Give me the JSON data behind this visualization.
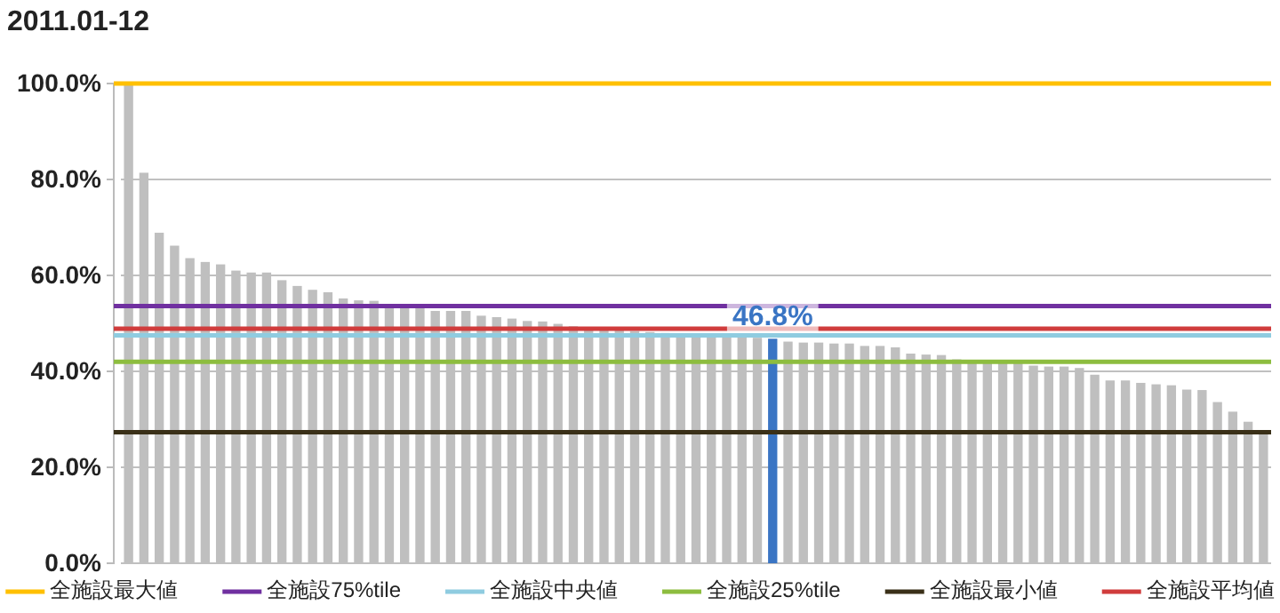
{
  "chart_data": {
    "type": "bar",
    "title": "2011.01-12",
    "categories": [
      null,
      null,
      null,
      null,
      null,
      null,
      null,
      null,
      null,
      null,
      null,
      null,
      null,
      null,
      null,
      null,
      null,
      null,
      null,
      null,
      null,
      null,
      null,
      null,
      null,
      null,
      null,
      null,
      null,
      null,
      null,
      null,
      null,
      null,
      null,
      null,
      null,
      null,
      null,
      null,
      null,
      null,
      null,
      null,
      null,
      null,
      null,
      null,
      null,
      null,
      null,
      null,
      null,
      null,
      null,
      null,
      null,
      null,
      null,
      null,
      null,
      null,
      null,
      null,
      null,
      null,
      null,
      null,
      null,
      null,
      null,
      null,
      null,
      null,
      null
    ],
    "values": [
      100,
      81.4,
      68.9,
      66.2,
      63.6,
      62.8,
      62.3,
      61.0,
      60.6,
      60.6,
      59.0,
      57.8,
      57.0,
      56.5,
      55.2,
      54.8,
      54.7,
      53.9,
      53.5,
      53.2,
      52.6,
      52.6,
      52.6,
      51.6,
      51.3,
      51.0,
      50.5,
      50.4,
      49.9,
      49.4,
      49.0,
      48.8,
      48.6,
      48.4,
      48.2,
      48.0,
      47.8,
      47.5,
      47.5,
      47.3,
      47.1,
      47.0,
      46.8,
      46.2,
      46.0,
      46.0,
      45.8,
      45.8,
      45.3,
      45.3,
      45.0,
      43.7,
      43.5,
      43.4,
      42.5,
      42.0,
      42.0,
      41.9,
      41.8,
      41.2,
      41.0,
      41.0,
      40.7,
      39.3,
      38.1,
      38.1,
      37.6,
      37.3,
      37.1,
      36.2,
      36.1,
      33.6,
      31.6,
      29.5,
      27.3
    ],
    "colors": [
      "#bfbfbf",
      "#bfbfbf",
      "#bfbfbf",
      "#bfbfbf",
      "#bfbfbf",
      "#bfbfbf",
      "#bfbfbf",
      "#bfbfbf",
      "#bfbfbf",
      "#bfbfbf",
      "#bfbfbf",
      "#bfbfbf",
      "#bfbfbf",
      "#bfbfbf",
      "#bfbfbf",
      "#bfbfbf",
      "#bfbfbf",
      "#bfbfbf",
      "#bfbfbf",
      "#bfbfbf",
      "#bfbfbf",
      "#bfbfbf",
      "#bfbfbf",
      "#bfbfbf",
      "#bfbfbf",
      "#bfbfbf",
      "#bfbfbf",
      "#bfbfbf",
      "#bfbfbf",
      "#bfbfbf",
      "#bfbfbf",
      "#bfbfbf",
      "#bfbfbf",
      "#bfbfbf",
      "#bfbfbf",
      "#bfbfbf",
      "#bfbfbf",
      "#bfbfbf",
      "#bfbfbf",
      "#bfbfbf",
      "#bfbfbf",
      "#bfbfbf",
      "#3a75c4",
      "#bfbfbf",
      "#bfbfbf",
      "#bfbfbf",
      "#bfbfbf",
      "#bfbfbf",
      "#bfbfbf",
      "#bfbfbf",
      "#bfbfbf",
      "#bfbfbf",
      "#bfbfbf",
      "#bfbfbf",
      "#bfbfbf",
      "#bfbfbf",
      "#bfbfbf",
      "#bfbfbf",
      "#bfbfbf",
      "#bfbfbf",
      "#bfbfbf",
      "#bfbfbf",
      "#bfbfbf",
      "#bfbfbf",
      "#bfbfbf",
      "#bfbfbf",
      "#bfbfbf",
      "#bfbfbf",
      "#bfbfbf",
      "#bfbfbf",
      "#bfbfbf",
      "#bfbfbf",
      "#bfbfbf",
      "#bfbfbf",
      "#bfbfbf"
    ],
    "value_labels": [
      null,
      null,
      null,
      null,
      null,
      null,
      null,
      null,
      null,
      null,
      null,
      null,
      null,
      null,
      null,
      null,
      null,
      null,
      null,
      null,
      null,
      null,
      null,
      null,
      null,
      null,
      null,
      null,
      null,
      null,
      null,
      null,
      null,
      null,
      null,
      null,
      null,
      null,
      null,
      null,
      null,
      null,
      "46.8%",
      null,
      null,
      null,
      null,
      null,
      null,
      null,
      null,
      null,
      null,
      null,
      null,
      null,
      null,
      null,
      null,
      null,
      null,
      null,
      null,
      null,
      null,
      null,
      null,
      null,
      null,
      null,
      null,
      null,
      null,
      null,
      null
    ],
    "ylim": [
      0,
      100
    ],
    "yticks": [
      {
        "value": 0,
        "label": "0.0%"
      },
      {
        "value": 20,
        "label": "20.0%"
      },
      {
        "value": 40,
        "label": "40.0%"
      },
      {
        "value": 60,
        "label": "60.0%"
      },
      {
        "value": 80,
        "label": "80.0%"
      },
      {
        "value": 100,
        "label": "100.0%"
      }
    ],
    "grid": "y",
    "ref_lines": [
      {
        "axis": "y",
        "value": 100,
        "label": "全施設最大値",
        "color": "#ffc000"
      },
      {
        "axis": "y",
        "value": 53.6,
        "label": "全施設75%tile",
        "color": "#7030a0"
      },
      {
        "axis": "y",
        "value": 47.5,
        "label": "全施設中央値",
        "color": "#8fcce0"
      },
      {
        "axis": "y",
        "value": 42.0,
        "label": "全施設25%tile",
        "color": "#8dbd3f"
      },
      {
        "axis": "y",
        "value": 27.3,
        "label": "全施設最小値",
        "color": "#3a3018"
      },
      {
        "axis": "y",
        "value": 48.9,
        "label": "全施設平均値",
        "color": "#d03c3c"
      }
    ],
    "legend": "bottom"
  }
}
